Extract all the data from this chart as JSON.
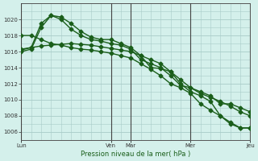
{
  "bg_color": "#d4f0eb",
  "grid_color": "#a8ccc8",
  "line_color": "#1a5e1a",
  "xlabel": "Pression niveau de la mer( hPa )",
  "ylim": [
    1005,
    1022
  ],
  "yticks": [
    1006,
    1008,
    1010,
    1012,
    1014,
    1016,
    1018,
    1020
  ],
  "day_labels": [
    "Lun",
    "Ven",
    "Mar",
    "Mer",
    "Jeu"
  ],
  "day_positions": [
    0,
    9,
    11,
    17,
    23
  ],
  "vline_positions": [
    0,
    9,
    11,
    17,
    23
  ],
  "xlim": [
    0,
    23
  ],
  "series": [
    {
      "x": [
        0,
        1,
        2,
        3,
        4,
        5,
        6,
        7,
        8,
        9,
        10,
        11,
        12,
        13,
        14,
        15,
        16,
        17,
        18,
        19,
        20,
        21,
        22,
        23
      ],
      "y": [
        1016.0,
        1016.3,
        1019.0,
        1020.5,
        1020.3,
        1019.5,
        1018.5,
        1017.8,
        1017.5,
        1017.5,
        1017.0,
        1016.5,
        1015.5,
        1014.0,
        1013.9,
        1013.5,
        1012.5,
        1011.5,
        1011.0,
        1010.5,
        1009.5,
        1009.5,
        1009.0,
        1008.5
      ]
    },
    {
      "x": [
        0,
        1,
        2,
        3,
        4,
        5,
        6,
        7,
        8,
        9,
        10,
        11,
        12,
        13,
        14,
        15,
        16,
        17,
        18,
        19,
        20,
        21,
        22,
        23
      ],
      "y": [
        1016.2,
        1016.5,
        1019.5,
        1020.5,
        1020.0,
        1018.8,
        1018.0,
        1017.5,
        1017.3,
        1017.0,
        1016.8,
        1016.3,
        1015.0,
        1014.5,
        1014.0,
        1013.0,
        1011.8,
        1011.5,
        1010.8,
        1010.3,
        1009.8,
        1009.2,
        1008.5,
        1008.0
      ]
    },
    {
      "x": [
        0,
        1,
        2,
        3,
        4,
        5,
        6,
        7,
        8,
        9,
        10,
        11,
        12,
        13,
        14,
        15,
        16,
        17,
        18,
        19,
        20,
        21,
        22,
        23
      ],
      "y": [
        1018.0,
        1018.0,
        1017.5,
        1017.0,
        1016.8,
        1016.5,
        1016.3,
        1016.2,
        1016.0,
        1015.8,
        1015.5,
        1015.2,
        1014.5,
        1013.8,
        1013.0,
        1012.0,
        1011.5,
        1010.8,
        1009.5,
        1008.7,
        1008.0,
        1007.2,
        1006.5,
        1006.5
      ]
    },
    {
      "x": [
        0,
        1,
        2,
        3,
        4,
        5,
        6,
        7,
        8,
        9,
        10,
        11,
        12,
        13,
        14,
        15,
        16,
        17,
        18,
        19,
        20,
        21,
        22,
        23
      ],
      "y": [
        1016.3,
        1016.5,
        1016.7,
        1016.8,
        1016.9,
        1017.0,
        1016.9,
        1016.8,
        1016.6,
        1016.4,
        1016.2,
        1016.0,
        1015.5,
        1015.0,
        1014.5,
        1013.5,
        1012.0,
        1011.0,
        1010.5,
        1009.8,
        1008.0,
        1007.0,
        1006.5,
        1006.5
      ]
    }
  ],
  "marker": "D",
  "markersize": 2.5,
  "linewidth": 1.0
}
